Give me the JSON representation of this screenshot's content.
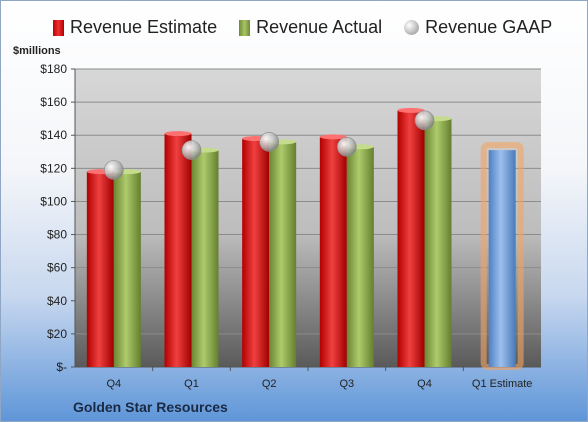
{
  "chart_data": {
    "type": "bar",
    "categories": [
      "Q4",
      "Q1",
      "Q2",
      "Q3",
      "Q4",
      "Q1 Estimate"
    ],
    "series": [
      {
        "name": "Revenue Estimate",
        "values": [
          118,
          141,
          138,
          139,
          155,
          null
        ]
      },
      {
        "name": "Revenue Actual",
        "values": [
          118,
          131,
          136,
          133,
          150,
          131
        ]
      },
      {
        "name": "Revenue GAAP",
        "values": [
          119,
          131,
          136,
          133,
          149,
          null
        ]
      }
    ],
    "ylabel": "$millions",
    "ylim": [
      0,
      180
    ],
    "yticks": [
      0,
      20,
      40,
      60,
      80,
      100,
      120,
      140,
      160,
      180
    ],
    "ytick_labels": [
      "$-",
      "$20",
      "$40",
      "$60",
      "$80",
      "$100",
      "$120",
      "$140",
      "$160",
      "$180"
    ],
    "grid": true,
    "legend_position": "top",
    "highlighted_category": "Q1 Estimate",
    "footer": "Golden Star Resources",
    "colors": {
      "estimate": "#d42020",
      "actual": "#8aab4a",
      "gaap": "#c8c8c8",
      "forecast": "#6f9fd8",
      "highlight_glow": "#f4a460"
    }
  }
}
